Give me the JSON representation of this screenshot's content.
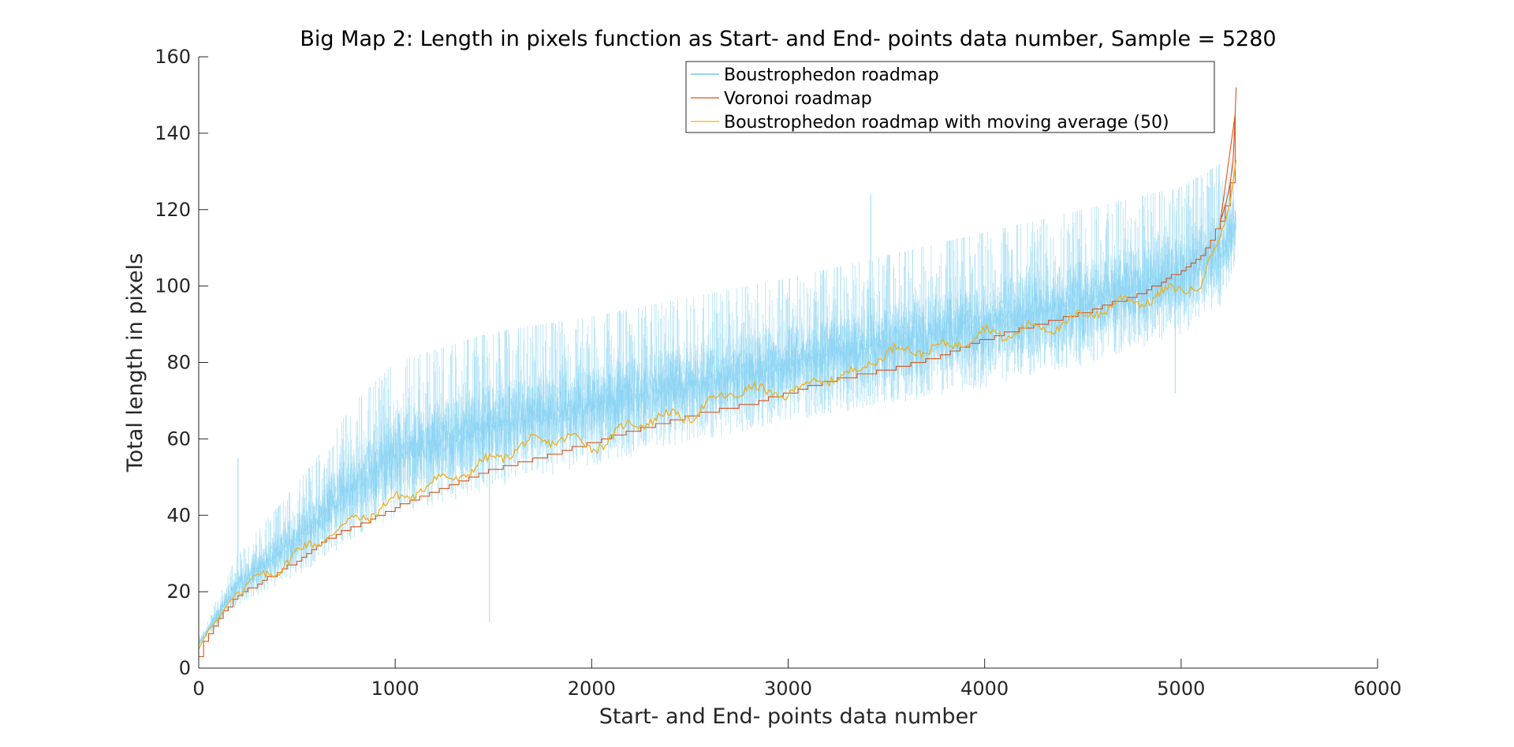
{
  "chart_data": {
    "type": "line",
    "title": "Big Map 2: Length in pixels function as Start- and End- points data number, Sample = 5280",
    "xlabel": "Start- and End- points data number",
    "ylabel": "Total length in pixels",
    "xlim": [
      0,
      6000
    ],
    "ylim": [
      0,
      160
    ],
    "xticks": [
      0,
      1000,
      2000,
      3000,
      4000,
      5000,
      6000
    ],
    "yticks": [
      0,
      20,
      40,
      60,
      80,
      100,
      120,
      140,
      160
    ],
    "grid": false,
    "legend_position": "top",
    "series": [
      {
        "name": "Boustrophedon roadmap",
        "color": "#4DBEEE",
        "style": "noisy band around the Voronoi curve",
        "n": 5280,
        "envelope_low": {
          "x": [
            0,
            200,
            400,
            600,
            800,
            1000,
            1500,
            2000,
            2500,
            3000,
            3500,
            4000,
            4500,
            5000,
            5200,
            5280
          ],
          "y": [
            5,
            14,
            18,
            22,
            28,
            32,
            40,
            46,
            52,
            58,
            62,
            66,
            72,
            80,
            88,
            100
          ]
        },
        "envelope_high": {
          "x": [
            0,
            200,
            400,
            600,
            800,
            1000,
            1500,
            2000,
            2500,
            3000,
            3500,
            4000,
            4500,
            5000,
            5200,
            5280
          ],
          "y": [
            8,
            30,
            42,
            55,
            70,
            80,
            88,
            92,
            97,
            102,
            108,
            114,
            120,
            126,
            132,
            134
          ]
        },
        "spikes": [
          {
            "x": 200,
            "y": 55
          },
          {
            "x": 1480,
            "y": 12
          },
          {
            "x": 3420,
            "y": 124
          },
          {
            "x": 4970,
            "y": 72
          }
        ]
      },
      {
        "name": "Voronoi roadmap",
        "color": "#D95319",
        "x": [
          0,
          25,
          50,
          100,
          150,
          200,
          300,
          400,
          500,
          600,
          700,
          800,
          1000,
          1200,
          1500,
          1800,
          2000,
          2200,
          2500,
          2800,
          3000,
          3200,
          3500,
          3800,
          4000,
          4200,
          4500,
          4800,
          5000,
          5100,
          5150,
          5200,
          5230,
          5250,
          5265,
          5275,
          5280
        ],
        "y": [
          3,
          7,
          9,
          13,
          16,
          19,
          22,
          25,
          28,
          32,
          35,
          37,
          42,
          46,
          52,
          56,
          59,
          62,
          66,
          69,
          72,
          75,
          78,
          82,
          86,
          89,
          93,
          98,
          104,
          108,
          112,
          117,
          122,
          127,
          133,
          145,
          152
        ]
      },
      {
        "name": "Boustrophedon roadmap with moving average (50)",
        "color": "#EDB120",
        "x": [
          0,
          50,
          100,
          150,
          200,
          300,
          400,
          500,
          600,
          700,
          800,
          900,
          1000,
          1100,
          1200,
          1300,
          1400,
          1500,
          1600,
          1700,
          1800,
          1900,
          2000,
          2100,
          2200,
          2300,
          2400,
          2500,
          2600,
          2700,
          2800,
          2900,
          3000,
          3100,
          3200,
          3300,
          3400,
          3500,
          3600,
          3700,
          3800,
          3900,
          4000,
          4100,
          4200,
          4300,
          4400,
          4500,
          4600,
          4700,
          4800,
          4900,
          5000,
          5100,
          5200,
          5250,
          5280
        ],
        "y": [
          5,
          10,
          13,
          17,
          20,
          23,
          26,
          30,
          33,
          36,
          39,
          41,
          44,
          46,
          49,
          50,
          52,
          55,
          57,
          59,
          60,
          60,
          58,
          60,
          64,
          65,
          66,
          66,
          69,
          72,
          73,
          72,
          72,
          74,
          76,
          76,
          80,
          82,
          84,
          83,
          84,
          86,
          88,
          87,
          89,
          89,
          90,
          92,
          94,
          96,
          96,
          98,
          99,
          101,
          112,
          122,
          133
        ]
      }
    ]
  }
}
